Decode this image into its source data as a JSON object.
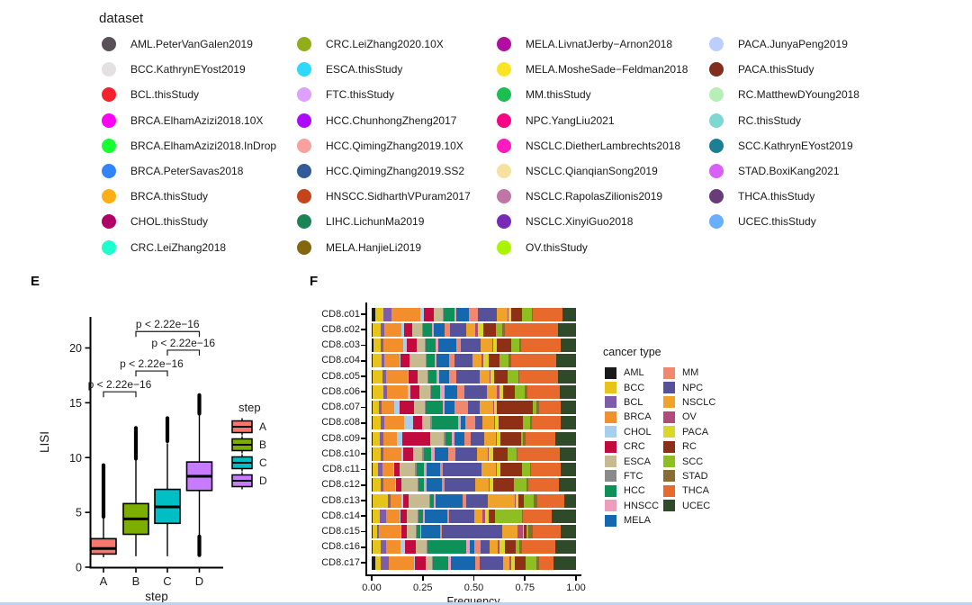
{
  "figure": {
    "panel_e_label": "E",
    "panel_f_label": "F"
  },
  "dataset_legend": {
    "title": "dataset",
    "column_lefts": [
      113,
      330,
      552,
      788
    ],
    "columns": [
      [
        {
          "label": "AML.PeterVanGalen2019",
          "color": "#5A5156"
        },
        {
          "label": "BCC.KathrynEYost2019",
          "color": "#E4E1E3"
        },
        {
          "label": "BCL.thisStudy",
          "color": "#F6222E"
        },
        {
          "label": "BRCA.ElhamAzizi2018.10X",
          "color": "#FE00FA"
        },
        {
          "label": "BRCA.ElhamAzizi2018.InDrop",
          "color": "#16FF32"
        },
        {
          "label": "BRCA.PeterSavas2018",
          "color": "#3283FE"
        },
        {
          "label": "BRCA.thisStudy",
          "color": "#FEAF16"
        },
        {
          "label": "CHOL.thisStudy",
          "color": "#B00068"
        },
        {
          "label": "CRC.LeiZhang2018",
          "color": "#1CFFCE"
        }
      ],
      [
        {
          "label": "CRC.LeiZhang2020.10X",
          "color": "#90AD1C"
        },
        {
          "label": "ESCA.thisStudy",
          "color": "#2ED9FF"
        },
        {
          "label": "FTC.thisStudy",
          "color": "#DEA0FD"
        },
        {
          "label": "HCC.ChunhongZheng2017",
          "color": "#AA0DFE"
        },
        {
          "label": "HCC.QimingZhang2019.10X",
          "color": "#F8A19F"
        },
        {
          "label": "HCC.QimingZhang2019.SS2",
          "color": "#325A9B"
        },
        {
          "label": "HNSCC.SidharthVPuram2017",
          "color": "#C4451C"
        },
        {
          "label": "LIHC.LichunMa2019",
          "color": "#1C8356"
        },
        {
          "label": "MELA.HanjieLi2019",
          "color": "#85660D"
        }
      ],
      [
        {
          "label": "MELA.LivnatJerby−Arnon2018",
          "color": "#B10DA1"
        },
        {
          "label": "MELA.MosheSade−Feldman2018",
          "color": "#FBE426"
        },
        {
          "label": "MM.thisStudy",
          "color": "#1CBE4F"
        },
        {
          "label": "NPC.YangLiu2021",
          "color": "#FA0087"
        },
        {
          "label": "NSCLC.DietherLambrechts2018",
          "color": "#FC1CBF"
        },
        {
          "label": "NSCLC.QianqianSong2019",
          "color": "#F7E1A0"
        },
        {
          "label": "NSCLC.RapolasZilionis2019",
          "color": "#C075A6"
        },
        {
          "label": "NSCLC.XinyiGuo2018",
          "color": "#782AB6"
        },
        {
          "label": "OV.thisStudy",
          "color": "#AAF400"
        }
      ],
      [
        {
          "label": "PACA.JunyaPeng2019",
          "color": "#BDCDFF"
        },
        {
          "label": "PACA.thisStudy",
          "color": "#822E1C"
        },
        {
          "label": "RC.MatthewDYoung2018",
          "color": "#B5EFB5"
        },
        {
          "label": "RC.thisStudy",
          "color": "#7ED7D1"
        },
        {
          "label": "SCC.KathrynEYost2019",
          "color": "#1C7F93"
        },
        {
          "label": "STAD.BoxiKang2021",
          "color": "#D85FF7"
        },
        {
          "label": "THCA.thisStudy",
          "color": "#683B79"
        },
        {
          "label": "UCEC.thisStudy",
          "color": "#66B0FF"
        }
      ]
    ]
  },
  "chart_data": [
    {
      "type": "boxplot",
      "panel": "E",
      "xlabel": "step",
      "ylabel": "LISI",
      "ylim": [
        0,
        23
      ],
      "yticks": [
        0,
        5,
        10,
        15,
        20
      ],
      "categories": [
        "A",
        "B",
        "C",
        "D"
      ],
      "boxes": [
        {
          "step": "A",
          "color": "#F8766D",
          "whisker_low": 0.9,
          "q1": 1.2,
          "median": 1.7,
          "q3": 2.6,
          "whisker_high": 4.5,
          "outliers_high": [
            4.6,
            9.3
          ],
          "outliers_low": null
        },
        {
          "step": "B",
          "color": "#7CAE00",
          "whisker_low": 1.0,
          "q1": 3.0,
          "median": 4.4,
          "q3": 5.8,
          "whisker_high": 9.8,
          "outliers_high": [
            9.9,
            12.7
          ],
          "outliers_low": null
        },
        {
          "step": "C",
          "color": "#00BFC4",
          "whisker_low": 1.0,
          "q1": 4.0,
          "median": 5.5,
          "q3": 7.1,
          "whisker_high": 11.3,
          "outliers_high": [
            11.5,
            13.6
          ],
          "outliers_low": null
        },
        {
          "step": "D",
          "color": "#C77CFF",
          "whisker_low": 2.9,
          "q1": 7.0,
          "median": 8.3,
          "q3": 9.6,
          "whisker_high": 13.9,
          "outliers_high": [
            14.0,
            15.7
          ],
          "outliers_low": [
            1.1,
            2.8
          ]
        }
      ],
      "comparisons": [
        {
          "groups": [
            "A",
            "B"
          ],
          "label": "p < 2.22e−16",
          "y": 16.0
        },
        {
          "groups": [
            "B",
            "C"
          ],
          "label": "p < 2.22e−16",
          "y": 17.9
        },
        {
          "groups": [
            "C",
            "D"
          ],
          "label": "p < 2.22e−16",
          "y": 19.8
        },
        {
          "groups": [
            "B",
            "D"
          ],
          "label": "p < 2.22e−16",
          "y": 21.5
        }
      ],
      "legend": {
        "title": "step",
        "entries": [
          "A",
          "B",
          "C",
          "D"
        ]
      }
    },
    {
      "type": "stacked_bar_horizontal",
      "panel": "F",
      "xlabel": "Frequency",
      "xticks": [
        "0.00",
        "0.25",
        "0.50",
        "0.75",
        "1.00"
      ],
      "legend_title": "cancer type",
      "cancer_types": [
        {
          "name": "AML",
          "color": "#1A1A1A"
        },
        {
          "name": "BCC",
          "color": "#E7C419"
        },
        {
          "name": "BCL",
          "color": "#7D5CA8"
        },
        {
          "name": "BRCA",
          "color": "#F28E2B"
        },
        {
          "name": "CHOL",
          "color": "#A8CEEC"
        },
        {
          "name": "CRC",
          "color": "#C10A3E"
        },
        {
          "name": "ESCA",
          "color": "#C8BA90"
        },
        {
          "name": "FTC",
          "color": "#8A8A8A"
        },
        {
          "name": "HCC",
          "color": "#0E9158"
        },
        {
          "name": "HNSCC",
          "color": "#EE9DBD"
        },
        {
          "name": "MELA",
          "color": "#1668AE"
        },
        {
          "name": "MM",
          "color": "#F0876F"
        },
        {
          "name": "NPC",
          "color": "#55519B"
        },
        {
          "name": "NSCLC",
          "color": "#F0A32A"
        },
        {
          "name": "OV",
          "color": "#B34A7C"
        },
        {
          "name": "PACA",
          "color": "#D9D829"
        },
        {
          "name": "RC",
          "color": "#8E3016"
        },
        {
          "name": "SCC",
          "color": "#8FBE22"
        },
        {
          "name": "STAD",
          "color": "#8A6B30"
        },
        {
          "name": "THCA",
          "color": "#E8692C"
        },
        {
          "name": "UCEC",
          "color": "#2F4A29"
        }
      ],
      "rows": [
        {
          "cluster": "CD8.c01",
          "values": [
            1.5,
            4,
            4,
            13.5,
            1.5,
            5,
            4,
            0.5,
            5,
            1,
            6,
            4,
            9,
            5,
            0.5,
            1.5,
            5,
            4.5,
            0.5,
            14,
            6.5
          ]
        },
        {
          "cluster": "CD8.c02",
          "values": [
            0.5,
            3.5,
            1.5,
            8,
            1,
            3.5,
            4.5,
            0.5,
            4,
            1,
            4.5,
            2.5,
            7.5,
            4,
            1,
            2.5,
            5.5,
            3,
            1,
            24,
            8
          ]
        },
        {
          "cluster": "CD8.c03",
          "values": [
            1,
            3,
            1.5,
            9,
            1.5,
            4.5,
            3.5,
            0.5,
            4.5,
            1.5,
            8,
            2,
            9,
            5.5,
            0.5,
            1.5,
            6.5,
            3.5,
            1,
            18,
            7
          ]
        },
        {
          "cluster": "CD8.c04",
          "values": [
            0.5,
            4,
            1,
            7,
            0.5,
            4,
            7,
            0.5,
            3.5,
            1,
            5.5,
            2.5,
            8,
            4,
            0.5,
            2.5,
            5,
            4,
            1,
            20,
            9
          ]
        },
        {
          "cluster": "CD8.c05",
          "values": [
            0.3,
            4.5,
            1.5,
            9.5,
            0.5,
            4,
            4.5,
            0.5,
            3.5,
            1,
            4.5,
            3,
            10.5,
            4.5,
            0.5,
            1.5,
            6,
            4.5,
            0.7,
            17,
            8
          ]
        },
        {
          "cluster": "CD8.c06",
          "values": [
            0.5,
            4.5,
            1.5,
            9,
            1,
            4,
            4.5,
            0.5,
            4,
            2,
            5.5,
            3,
            9.5,
            4.5,
            1,
            1.5,
            5,
            4.5,
            1,
            14,
            7
          ]
        },
        {
          "cluster": "CD8.c07",
          "values": [
            0.5,
            2.5,
            1,
            5.5,
            2,
            6,
            4.5,
            0.5,
            7,
            1,
            4,
            5.5,
            5,
            5.5,
            0.5,
            1,
            15,
            1.5,
            1,
            9,
            6.5
          ]
        },
        {
          "cluster": "CD8.c08",
          "values": [
            0.5,
            3.5,
            1.5,
            9,
            4,
            4,
            4,
            0.5,
            12,
            1,
            2,
            4.5,
            3.5,
            5,
            0.5,
            1.5,
            11,
            3.5,
            0.5,
            13,
            7
          ]
        },
        {
          "cluster": "CD8.c09",
          "values": [
            0.5,
            3,
            1.5,
            6,
            2.5,
            12,
            6,
            0.5,
            3,
            1,
            4.5,
            2.5,
            6,
            5,
            0.5,
            1.5,
            9,
            1,
            1,
            13,
            9
          ]
        },
        {
          "cluster": "CD8.c10",
          "values": [
            0.5,
            3.5,
            1,
            8,
            1,
            4.5,
            4,
            0.5,
            3.5,
            1.5,
            6,
            3,
            9.5,
            5,
            0.5,
            2,
            6,
            4,
            0.5,
            19,
            7
          ]
        },
        {
          "cluster": "CD8.c11",
          "values": [
            0.5,
            2.5,
            2,
            4.5,
            0.5,
            2.5,
            7,
            0.5,
            3.5,
            1,
            6,
            1.5,
            17,
            6.5,
            0.5,
            1.5,
            10,
            3.5,
            0.5,
            13,
            7
          ]
        },
        {
          "cluster": "CD8.c12",
          "values": [
            0.5,
            3.5,
            1.5,
            5,
            0.5,
            2.5,
            7.5,
            0.5,
            2.5,
            1,
            7,
            1.5,
            14,
            6,
            0.5,
            1.5,
            9.5,
            6,
            0.5,
            14,
            8
          ]
        },
        {
          "cluster": "CD8.c13",
          "values": [
            0.3,
            7,
            1,
            5,
            0.5,
            2.5,
            9,
            0.5,
            1.5,
            1,
            12,
            1.5,
            9.5,
            12,
            0.5,
            1,
            2.5,
            4.5,
            1.5,
            12,
            5
          ]
        },
        {
          "cluster": "CD8.c14",
          "values": [
            0.5,
            3,
            3,
            6,
            0.5,
            3,
            4.5,
            0.5,
            2,
            1,
            10,
            1,
            11,
            4,
            1,
            1.5,
            3,
            12,
            0.5,
            13,
            11
          ]
        },
        {
          "cluster": "CD8.c15",
          "values": [
            0.3,
            2,
            1,
            10,
            0.5,
            2.5,
            4,
            0.5,
            1.5,
            0.5,
            9,
            0.5,
            28,
            7,
            2.5,
            0.7,
            1,
            1,
            2,
            13,
            7
          ]
        },
        {
          "cluster": "CD8.c16",
          "values": [
            0.3,
            3.5,
            2.5,
            6.5,
            2,
            4.5,
            5,
            0.5,
            17,
            1.5,
            2,
            3,
            4,
            3.5,
            0.5,
            2.5,
            5,
            1.5,
            1,
            15,
            9
          ]
        },
        {
          "cluster": "CD8.c17",
          "values": [
            1.5,
            2,
            3.5,
            10,
            0.5,
            4.5,
            2.5,
            0.5,
            6,
            1,
            10,
            2,
            9.5,
            2.5,
            0.5,
            1.5,
            4.5,
            4.5,
            1,
            6,
            9
          ]
        }
      ]
    }
  ]
}
